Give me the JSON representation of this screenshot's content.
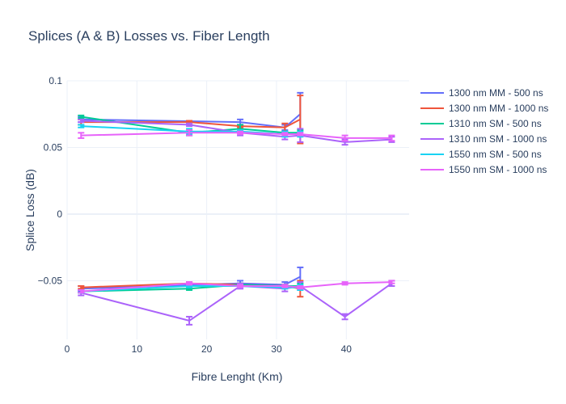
{
  "chart_data": {
    "type": "line",
    "title": "Splices (A & B) Losses vs. Fiber Length",
    "xlabel": "Fibre Lenght (Km)",
    "ylabel": "Splice Loss (dB)",
    "xlim": [
      0,
      49
    ],
    "ylim": [
      -0.094,
      0.1
    ],
    "x_ticks": [
      0,
      10,
      20,
      30,
      40
    ],
    "y_ticks": [
      0.1,
      0.05,
      0,
      -0.05
    ],
    "y_tick_labels": [
      "0.1",
      "0.05",
      "0",
      "−0.05"
    ],
    "grid": true,
    "legend_position": "right",
    "series": [
      {
        "name": "1300 nm MM - 500 ns",
        "color": "#636efa",
        "segments": [
          [
            [
              2,
              0.071,
              0.002
            ],
            [
              24.8,
              0.069,
              0.002
            ],
            [
              31.2,
              0.065,
              0.002
            ],
            [
              33.4,
              0.075,
              0.016
            ]
          ],
          [
            [
              2,
              -0.056,
              0.002
            ],
            [
              24.8,
              -0.052,
              0.002
            ],
            [
              31.2,
              -0.053,
              0.002
            ],
            [
              33.4,
              -0.047,
              0.007
            ]
          ]
        ]
      },
      {
        "name": "1300 nm MM - 1000 ns",
        "color": "#ef553b",
        "segments": [
          [
            [
              2,
              0.069,
              0.002
            ],
            [
              17.5,
              0.069,
              0.001
            ],
            [
              24.8,
              0.066,
              0.001
            ],
            [
              31.2,
              0.065,
              0.003
            ],
            [
              33.4,
              0.071,
              0.018
            ]
          ],
          [
            [
              2,
              -0.055,
              0.001
            ],
            [
              17.5,
              -0.052,
              0.001
            ],
            [
              24.8,
              -0.053,
              0.001
            ],
            [
              31.2,
              -0.054,
              0.001
            ],
            [
              33.4,
              -0.056,
              0.006
            ]
          ]
        ]
      },
      {
        "name": "1310 nm SM - 500 ns",
        "color": "#00cc96",
        "segments": [
          [
            [
              2,
              0.073,
              0.001
            ],
            [
              17.5,
              0.061,
              0.002
            ],
            [
              24.8,
              0.064,
              0.003
            ],
            [
              31.2,
              0.061,
              0.001
            ],
            [
              33.4,
              0.061,
              0.002
            ]
          ],
          [
            [
              2,
              -0.058,
              0.001
            ],
            [
              17.5,
              -0.056,
              0.001
            ],
            [
              24.8,
              -0.053,
              0.001
            ],
            [
              31.2,
              -0.054,
              0.001
            ],
            [
              33.4,
              -0.054,
              0.002
            ]
          ]
        ]
      },
      {
        "name": "1310 nm SM - 1000 ns",
        "color": "#ab63fa",
        "segments": [
          [
            [
              2,
              0.07,
              0.001
            ],
            [
              17.5,
              0.067,
              0.001
            ],
            [
              24.8,
              0.061,
              0.002
            ],
            [
              31.2,
              0.058,
              0.002
            ],
            [
              33.4,
              0.059,
              0.005
            ],
            [
              39.8,
              0.054,
              0.002
            ],
            [
              46.5,
              0.056,
              0.002
            ]
          ],
          [
            [
              2,
              -0.059,
              0.002
            ],
            [
              17.5,
              -0.08,
              0.003
            ],
            [
              24.8,
              -0.054,
              0.002
            ],
            [
              31.2,
              -0.056,
              0.002
            ],
            [
              33.4,
              -0.054,
              0.003
            ],
            [
              39.8,
              -0.077,
              0.002
            ],
            [
              46.5,
              -0.052,
              0.002
            ]
          ]
        ]
      },
      {
        "name": "1550 nm SM - 500 ns",
        "color": "#19d3f3",
        "segments": [
          [
            [
              2,
              0.066,
              0.001
            ],
            [
              17.5,
              0.062,
              0.002
            ],
            [
              24.8,
              0.062,
              0.001
            ],
            [
              31.2,
              0.06,
              0.002
            ],
            [
              33.4,
              0.06,
              0.002
            ]
          ],
          [
            [
              2,
              -0.058,
              0.001
            ],
            [
              17.5,
              -0.054,
              0.001
            ],
            [
              24.8,
              -0.054,
              0.001
            ],
            [
              31.2,
              -0.055,
              0.001
            ],
            [
              33.4,
              -0.055,
              0.002
            ]
          ]
        ]
      },
      {
        "name": "1550 nm SM - 1000 ns",
        "color": "#ff6692",
        "line_color": "#e763fa",
        "segments": [
          [
            [
              2,
              0.059,
              0.002
            ],
            [
              17.5,
              0.061,
              0.002
            ],
            [
              24.8,
              0.061,
              0.001
            ],
            [
              31.2,
              0.06,
              0.001
            ],
            [
              33.4,
              0.06,
              0.001
            ],
            [
              39.8,
              0.057,
              0.002
            ],
            [
              46.5,
              0.057,
              0.002
            ]
          ],
          [
            [
              2,
              -0.058,
              0.001
            ],
            [
              17.5,
              -0.052,
              0.001
            ],
            [
              24.8,
              -0.054,
              0.001
            ],
            [
              31.2,
              -0.054,
              0.001
            ],
            [
              33.4,
              -0.055,
              0.001
            ],
            [
              39.8,
              -0.052,
              0.001
            ],
            [
              46.5,
              -0.051,
              0.001
            ]
          ]
        ]
      }
    ]
  }
}
